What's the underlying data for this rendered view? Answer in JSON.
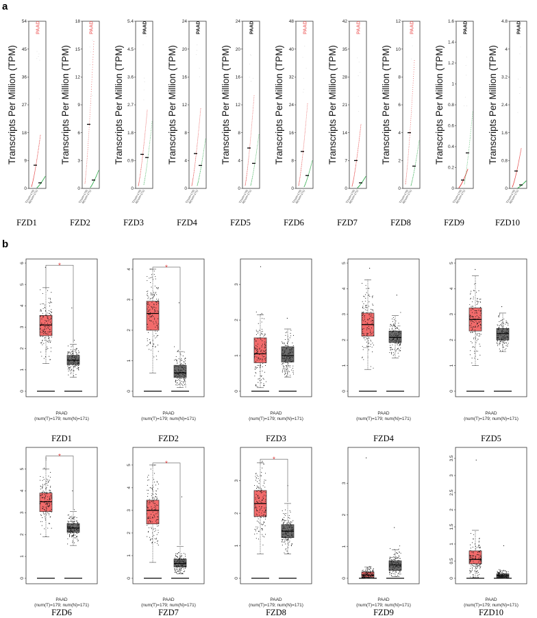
{
  "panels": {
    "a": "a",
    "b": "b"
  },
  "colors": {
    "tumor": "#f26b6b",
    "normal": "#6a6a6a",
    "tumor_dot": "#e23a3a",
    "normal_dot": "#22a640",
    "sig": "#e23a3a"
  },
  "chart_data": [
    {
      "panel": "a",
      "type": "scatter",
      "description": "Ranked expression dot plots (T vs N) with median markers",
      "ylabel": "Transcripts Per Million (TPM)",
      "cancer_label": "PAAD",
      "categories": [
        "T(num=179)",
        "N(num=171)"
      ],
      "charts": [
        {
          "gene": "FZD1",
          "ylim": [
            0,
            54
          ],
          "ticks": [
            0,
            9,
            18,
            27,
            36,
            45,
            54
          ],
          "tick_labels": [
            "0",
            "9",
            "18",
            "27",
            "36",
            "45",
            "54"
          ],
          "median_T": 7.5,
          "median_N": 1.8,
          "label_color": "red"
        },
        {
          "gene": "FZD2",
          "ylim": [
            0,
            18
          ],
          "ticks": [
            0,
            3,
            6,
            9,
            12,
            15,
            18
          ],
          "tick_labels": [
            "0",
            "3",
            "6",
            "9",
            "12",
            "15",
            "18"
          ],
          "median_T": 6.9,
          "median_N": 0.9,
          "label_color": "red"
        },
        {
          "gene": "FZD3",
          "ylim": [
            0,
            5.4
          ],
          "ticks": [
            0,
            0.9,
            1.8,
            2.7,
            3.6,
            4.5,
            5.4
          ],
          "tick_labels": [
            "0",
            "0.9",
            "1.8",
            "2.7",
            "3.6",
            "4.5",
            "5.4"
          ],
          "median_T": 1.1,
          "median_N": 1.0,
          "label_color": "black"
        },
        {
          "gene": "FZD4",
          "ylim": [
            0,
            24
          ],
          "ticks": [
            0,
            4,
            8,
            12,
            16,
            20,
            24
          ],
          "tick_labels": [
            "0",
            "4",
            "8",
            "12",
            "16",
            "20",
            "24"
          ],
          "median_T": 5.0,
          "median_N": 3.3,
          "label_color": "black"
        },
        {
          "gene": "FZD5",
          "ylim": [
            0,
            24
          ],
          "ticks": [
            0,
            4,
            8,
            12,
            16,
            20,
            24
          ],
          "tick_labels": [
            "0",
            "4",
            "8",
            "12",
            "16",
            "20",
            "24"
          ],
          "median_T": 5.8,
          "median_N": 3.6,
          "label_color": "black"
        },
        {
          "gene": "FZD6",
          "ylim": [
            0,
            48
          ],
          "ticks": [
            0,
            8,
            16,
            24,
            32,
            40,
            48
          ],
          "tick_labels": [
            "0",
            "8",
            "16",
            "24",
            "32",
            "40",
            "48"
          ],
          "median_T": 10.6,
          "median_N": 3.7,
          "label_color": "red"
        },
        {
          "gene": "FZD7",
          "ylim": [
            0,
            42
          ],
          "ticks": [
            0,
            7,
            14,
            21,
            28,
            35,
            42
          ],
          "tick_labels": [
            "0",
            "7",
            "14",
            "21",
            "28",
            "35",
            "42"
          ],
          "median_T": 7.0,
          "median_N": 1.4,
          "label_color": "red"
        },
        {
          "gene": "FZD8",
          "ylim": [
            0,
            12
          ],
          "ticks": [
            0,
            2,
            4,
            6,
            8,
            10,
            12
          ],
          "tick_labels": [
            "0",
            "2",
            "4",
            "6",
            "8",
            "10",
            "12"
          ],
          "median_T": 4.0,
          "median_N": 1.6,
          "label_color": "red"
        },
        {
          "gene": "FZD9",
          "ylim": [
            0,
            1.6
          ],
          "ticks": [
            0,
            0.2,
            0.4,
            0.6,
            0.8,
            1,
            1.2,
            1.4,
            1.6
          ],
          "tick_labels": [
            "0",
            "0.2",
            "0.4",
            "0.6",
            "0.8",
            "1",
            "1.2",
            "1.4",
            "1.6"
          ],
          "median_T": 0.08,
          "median_N": 0.34,
          "label_color": "black"
        },
        {
          "gene": "FZD10",
          "ylim": [
            0,
            4.8
          ],
          "ticks": [
            0,
            0.8,
            1.6,
            2.4,
            3.2,
            4,
            4.8
          ],
          "tick_labels": [
            "0",
            "0.8",
            "1.6",
            "2.4",
            "3.2",
            "4",
            "4.8"
          ],
          "median_T": 0.5,
          "median_N": 0.1,
          "label_color": "black"
        }
      ]
    },
    {
      "panel": "b",
      "type": "box",
      "description": "Box plots with jittered points, PAAD tumor (red) vs normal (grey)",
      "xlabel": "PAAD",
      "xsub": "(num(T)=179; num(N)=171)",
      "charts": [
        {
          "gene": "FZD1",
          "ylim": [
            0,
            6
          ],
          "ticks": [
            0,
            1,
            2,
            3,
            4,
            5,
            6
          ],
          "sig": true,
          "T": {
            "q1": 2.6,
            "median": 3.1,
            "q3": 3.55,
            "lo": 1.3,
            "hi": 4.85,
            "max": 5.8
          },
          "N": {
            "q1": 1.25,
            "median": 1.45,
            "q3": 1.68,
            "lo": 0.65,
            "hi": 2.2,
            "max": 3.9
          }
        },
        {
          "gene": "FZD2",
          "ylim": [
            0,
            4.2
          ],
          "ticks": [
            0,
            1,
            2,
            3,
            4
          ],
          "sig": true,
          "T": {
            "q1": 2.0,
            "median": 2.55,
            "q3": 2.95,
            "lo": 0.6,
            "hi": 4.0,
            "max": 4.0
          },
          "N": {
            "q1": 0.45,
            "median": 0.6,
            "q3": 0.85,
            "lo": 0.12,
            "hi": 1.3,
            "max": 2.9
          }
        },
        {
          "gene": "FZD3",
          "ylim": [
            0,
            3.6
          ],
          "ticks": [
            0,
            1,
            2,
            3
          ],
          "sig": false,
          "T": {
            "q1": 0.8,
            "median": 1.05,
            "q3": 1.5,
            "lo": 0.1,
            "hi": 2.15,
            "max": 3.5
          },
          "N": {
            "q1": 0.82,
            "median": 1.0,
            "q3": 1.25,
            "lo": 0.4,
            "hi": 1.75,
            "max": 2.05
          }
        },
        {
          "gene": "FZD4",
          "ylim": [
            0,
            5
          ],
          "ticks": [
            0,
            1,
            2,
            3,
            4,
            5
          ],
          "sig": false,
          "T": {
            "q1": 2.15,
            "median": 2.6,
            "q3": 3.05,
            "lo": 0.85,
            "hi": 4.35,
            "max": 4.8
          },
          "N": {
            "q1": 1.9,
            "median": 2.1,
            "q3": 2.35,
            "lo": 1.3,
            "hi": 2.95,
            "max": 3.75
          }
        },
        {
          "gene": "FZD5",
          "ylim": [
            0,
            5
          ],
          "ticks": [
            0,
            1,
            2,
            3,
            4,
            5
          ],
          "sig": false,
          "T": {
            "q1": 2.35,
            "median": 2.8,
            "q3": 3.25,
            "lo": 1.0,
            "hi": 4.5,
            "max": 4.75
          },
          "N": {
            "q1": 2.0,
            "median": 2.25,
            "q3": 2.45,
            "lo": 1.55,
            "hi": 3.05,
            "max": 3.3
          }
        },
        {
          "gene": "FZD6",
          "ylim": [
            0,
            5.8
          ],
          "ticks": [
            0,
            1,
            2,
            3,
            4,
            5
          ],
          "sig": true,
          "T": {
            "q1": 3.05,
            "median": 3.5,
            "q3": 3.9,
            "lo": 1.9,
            "hi": 5.0,
            "max": 5.5
          },
          "N": {
            "q1": 2.1,
            "median": 2.3,
            "q3": 2.5,
            "lo": 1.5,
            "hi": 3.05,
            "max": 4.0
          }
        },
        {
          "gene": "FZD7",
          "ylim": [
            0,
            5.6
          ],
          "ticks": [
            0,
            1,
            2,
            3,
            4,
            5
          ],
          "sig": true,
          "T": {
            "q1": 2.4,
            "median": 3.0,
            "q3": 3.45,
            "lo": 0.7,
            "hi": 5.0,
            "max": 5.0
          },
          "N": {
            "q1": 0.5,
            "median": 0.65,
            "q3": 0.85,
            "lo": 0.2,
            "hi": 1.4,
            "max": 3.6
          }
        },
        {
          "gene": "FZD8",
          "ylim": [
            0,
            3.9
          ],
          "ticks": [
            0,
            1,
            2,
            3
          ],
          "sig": true,
          "T": {
            "q1": 1.9,
            "median": 2.3,
            "q3": 2.7,
            "lo": 0.75,
            "hi": 3.55,
            "max": 3.6
          },
          "N": {
            "q1": 1.25,
            "median": 1.45,
            "q3": 1.65,
            "lo": 0.75,
            "hi": 2.3,
            "max": 2.85
          }
        },
        {
          "gene": "FZD9",
          "ylim": [
            0,
            4
          ],
          "ticks": [
            0,
            1,
            2,
            3
          ],
          "sig": false,
          "T": {
            "q1": 0.03,
            "median": 0.1,
            "q3": 0.2,
            "lo": 0.0,
            "hi": 0.35,
            "max": 3.8
          },
          "N": {
            "q1": 0.25,
            "median": 0.42,
            "q3": 0.55,
            "lo": 0.05,
            "hi": 0.9,
            "max": 1.6
          }
        },
        {
          "gene": "FZD10",
          "ylim": [
            0,
            3.7
          ],
          "ticks": [
            0,
            0.5,
            1,
            1.5,
            2,
            2.5,
            3,
            3.5
          ],
          "sig": false,
          "T": {
            "q1": 0.42,
            "median": 0.55,
            "q3": 0.8,
            "lo": 0.02,
            "hi": 1.4,
            "max": 3.45
          },
          "N": {
            "q1": 0.02,
            "median": 0.07,
            "q3": 0.13,
            "lo": 0.0,
            "hi": 0.22,
            "max": 0.95
          }
        }
      ]
    }
  ]
}
